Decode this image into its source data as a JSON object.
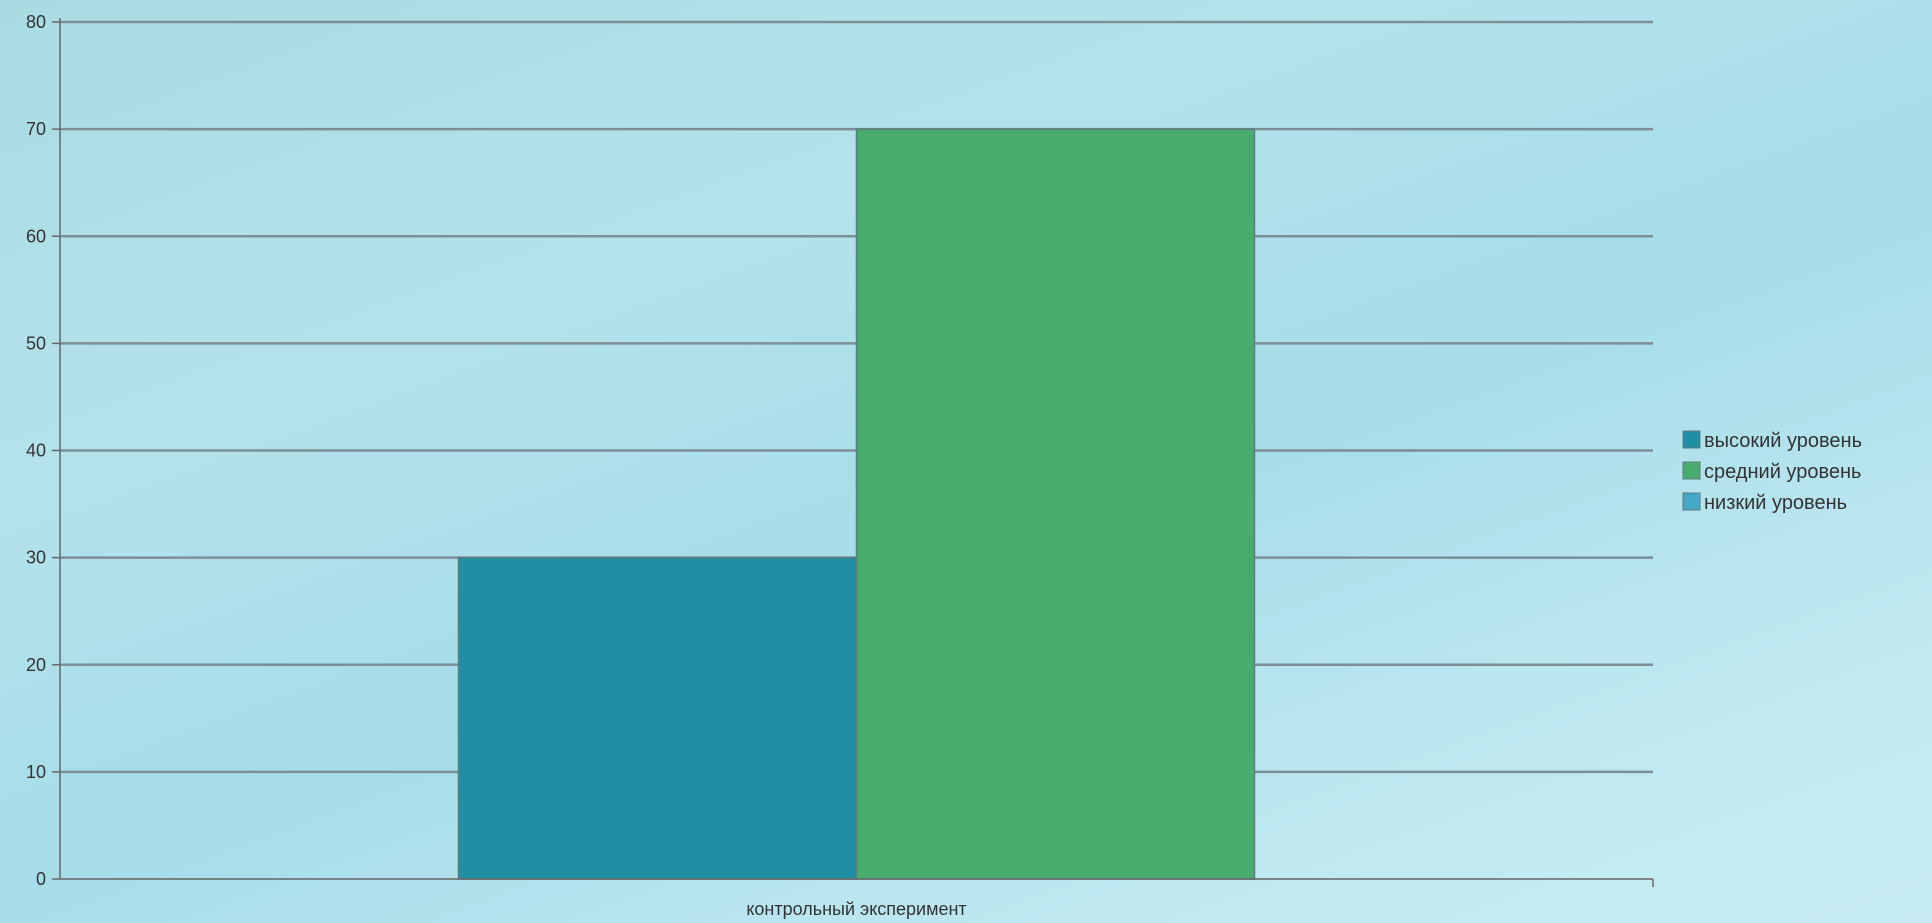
{
  "chart_data": {
    "type": "bar",
    "categories": [
      "контрольный эксперимент"
    ],
    "series": [
      {
        "name": "высокий уровень",
        "values": [
          30
        ],
        "color": "#1f90a3"
      },
      {
        "name": "средний уровень",
        "values": [
          70
        ],
        "color": "#49ab6e"
      },
      {
        "name": "низкий уровень",
        "values": [
          0
        ],
        "color": "#45a8c8"
      }
    ],
    "ylim": [
      0,
      80
    ],
    "yticks": [
      0,
      10,
      20,
      30,
      40,
      50,
      60,
      70,
      80
    ],
    "grid": true,
    "legend": "right"
  }
}
